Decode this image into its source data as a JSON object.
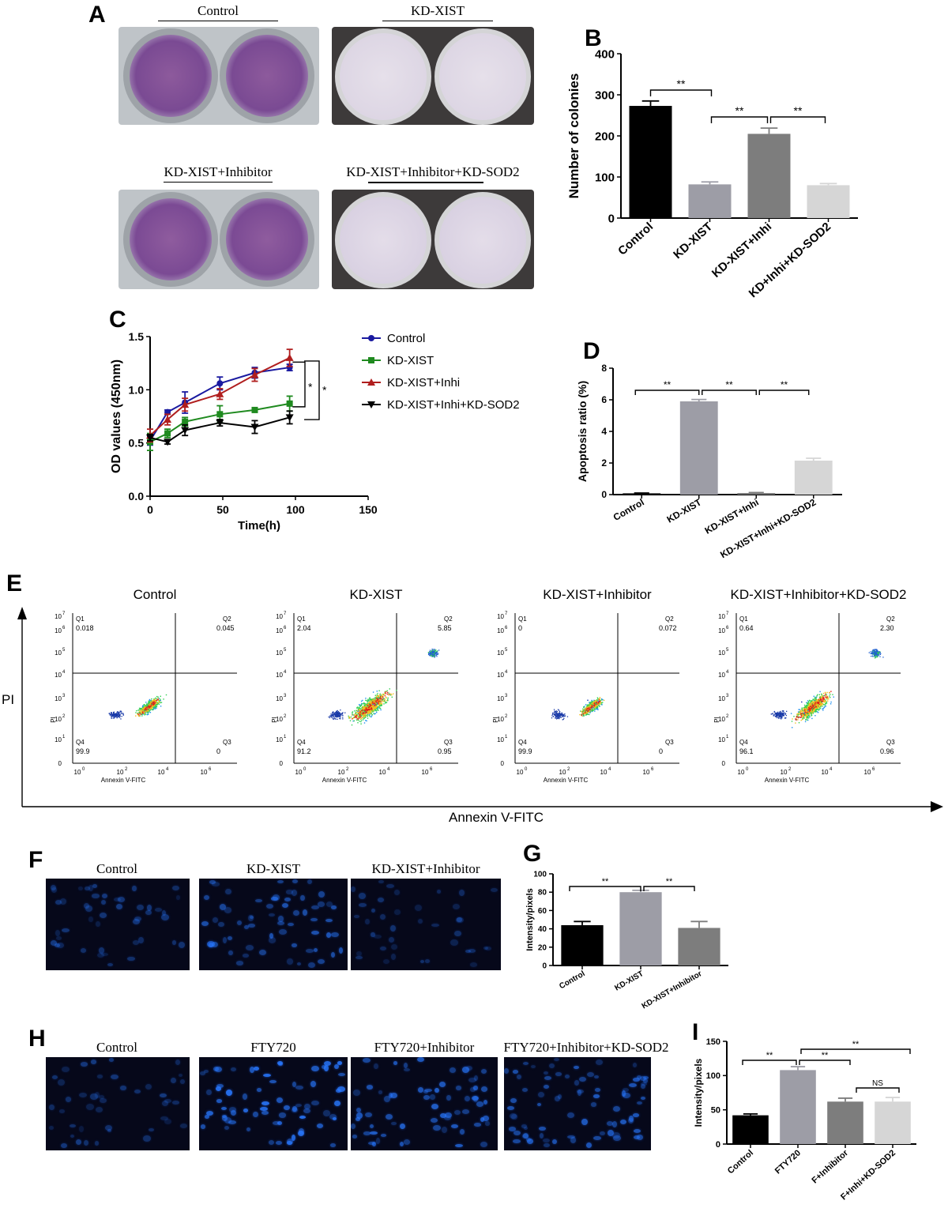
{
  "panels": {
    "A": {
      "label": "A",
      "captions": [
        "Control",
        "KD-XIST",
        "KD-XIST+Inhibitor",
        "KD-XIST+Inhibitor+KD-SOD2"
      ]
    },
    "B": {
      "label": "B"
    },
    "C": {
      "label": "C"
    },
    "D": {
      "label": "D"
    },
    "E": {
      "label": "E",
      "plots": [
        {
          "title": "Control",
          "q1": "0.018",
          "q2": "0.045",
          "q3": "0",
          "q4": "99.9"
        },
        {
          "title": "KD-XIST",
          "q1": "2.04",
          "q2": "5.85",
          "q3": "0.95",
          "q4": "91.2"
        },
        {
          "title": "KD-XIST+Inhibitor",
          "q1": "0",
          "q2": "0.072",
          "q3": "0",
          "q4": "99.9"
        },
        {
          "title": "KD-XIST+Inhibitor+KD-SOD2",
          "q1": "0.64",
          "q2": "2.30",
          "q3": "0.96",
          "q4": "96.1"
        }
      ],
      "quadrant_names": [
        "Q1",
        "Q2",
        "Q3",
        "Q4"
      ],
      "x_title": "Annexin V-FITC",
      "y_title": "PI",
      "outer_x_title": "Annexin V-FITC",
      "outer_y_title": "PI",
      "ticks": [
        "0",
        "10",
        "2",
        "10",
        "4",
        "10",
        "6",
        "10",
        "7"
      ]
    },
    "F": {
      "label": "F",
      "captions": [
        "Control",
        "KD-XIST",
        "KD-XIST+Inhibitor"
      ]
    },
    "G": {
      "label": "G"
    },
    "H": {
      "label": "H",
      "captions": [
        "Control",
        "FTY720",
        "FTY720+Inhibitor",
        "FTY720+Inhibitor+KD-SOD2"
      ]
    },
    "I": {
      "label": "I"
    }
  },
  "chart_data": [
    {
      "id": "B",
      "type": "bar",
      "categories": [
        "Control",
        "KD-XIST",
        "KD-XIST+Inhi",
        "KD+Inhi+KD-SOD2"
      ],
      "values": [
        273,
        82,
        205,
        80
      ],
      "errors": [
        12,
        6,
        14,
        4
      ],
      "ylabel": "Number of colonies",
      "ylim": [
        0,
        400
      ],
      "yticks": [
        0,
        100,
        200,
        300,
        400
      ],
      "colors": [
        "#000000",
        "#9d9da6",
        "#7d7d7d",
        "#d6d6d6"
      ],
      "sig": [
        {
          "from": 0,
          "to": 1,
          "label": "**"
        },
        {
          "from": 1,
          "to": 2,
          "label": "**"
        },
        {
          "from": 2,
          "to": 3,
          "label": "**"
        }
      ]
    },
    {
      "id": "C",
      "type": "line",
      "xlabel": "Time(h)",
      "ylabel": "OD values (450nm)",
      "xlim": [
        0,
        150
      ],
      "ylim": [
        0,
        1.5
      ],
      "xticks": [
        0,
        50,
        100,
        150
      ],
      "yticks": [
        0.0,
        0.5,
        1.0,
        1.5
      ],
      "series": [
        {
          "name": "Control",
          "color": "#1a1aa0",
          "marker": "circle",
          "x": [
            0,
            12,
            24,
            48,
            72,
            96
          ],
          "y": [
            0.52,
            0.79,
            0.88,
            1.06,
            1.16,
            1.21
          ],
          "err": [
            0.04,
            0.02,
            0.1,
            0.06,
            0.05,
            0.03
          ]
        },
        {
          "name": "KD-XIST",
          "color": "#1f8a1f",
          "marker": "square",
          "x": [
            0,
            12,
            24,
            48,
            72,
            96
          ],
          "y": [
            0.51,
            0.59,
            0.7,
            0.77,
            0.81,
            0.87
          ],
          "err": [
            0.08,
            0.04,
            0.04,
            0.08,
            0.02,
            0.07
          ]
        },
        {
          "name": "KD-XIST+Inhi",
          "color": "#b01e1e",
          "marker": "triangle",
          "x": [
            0,
            12,
            24,
            48,
            72,
            96
          ],
          "y": [
            0.57,
            0.72,
            0.86,
            0.96,
            1.14,
            1.3
          ],
          "err": [
            0.06,
            0.05,
            0.06,
            0.05,
            0.06,
            0.08
          ]
        },
        {
          "name": "KD-XIST+Inhi+KD-SOD2",
          "color": "#000000",
          "marker": "triangle-down",
          "x": [
            0,
            12,
            24,
            48,
            72,
            96
          ],
          "y": [
            0.55,
            0.51,
            0.62,
            0.69,
            0.65,
            0.74
          ],
          "err": [
            0.03,
            0.02,
            0.05,
            0.03,
            0.06,
            0.06
          ]
        }
      ],
      "sig": [
        "*",
        "*"
      ]
    },
    {
      "id": "D",
      "type": "bar",
      "categories": [
        "Control",
        "KD-XIST",
        "KD-XIST+Inhi",
        "KD-XIST+Inhi+KD-SOD2"
      ],
      "values": [
        0.08,
        5.9,
        0.1,
        2.15
      ],
      "errors": [
        0.02,
        0.12,
        0.03,
        0.15
      ],
      "ylabel": "Apoptosis ratio (%)",
      "ylim": [
        0,
        8
      ],
      "yticks": [
        0,
        2,
        4,
        6,
        8
      ],
      "colors": [
        "#000000",
        "#9d9da6",
        "#7d7d7d",
        "#d6d6d6"
      ],
      "sig": [
        {
          "from": 0,
          "to": 1,
          "label": "**"
        },
        {
          "from": 1,
          "to": 2,
          "label": "**"
        },
        {
          "from": 2,
          "to": 3,
          "label": "**"
        }
      ]
    },
    {
      "id": "G",
      "type": "bar",
      "categories": [
        "Control",
        "KD-XIST",
        "KD-XIST+Inhibitor"
      ],
      "values": [
        44,
        80,
        41
      ],
      "errors": [
        4,
        2,
        7
      ],
      "ylabel": "Intensity/pixels",
      "ylim": [
        0,
        100
      ],
      "yticks": [
        0,
        20,
        40,
        60,
        80,
        100
      ],
      "colors": [
        "#000000",
        "#9d9da6",
        "#7d7d7d"
      ],
      "sig": [
        {
          "from": 0,
          "to": 1,
          "label": "**"
        },
        {
          "from": 1,
          "to": 2,
          "label": "**"
        }
      ]
    },
    {
      "id": "I",
      "type": "bar",
      "categories": [
        "Control",
        "FTY720",
        "F+Inhibitor",
        "F+Inhi+KD-SOD2"
      ],
      "values": [
        42,
        108,
        62,
        62
      ],
      "errors": [
        2,
        5,
        5,
        6
      ],
      "ylabel": "Intensity/pixels",
      "ylim": [
        0,
        150
      ],
      "yticks": [
        0,
        50,
        100,
        150
      ],
      "colors": [
        "#000000",
        "#9d9da6",
        "#7d7d7d",
        "#d6d6d6"
      ],
      "sig": [
        {
          "from": 0,
          "to": 1,
          "label": "**"
        },
        {
          "from": 1,
          "to": 2,
          "label": "**"
        },
        {
          "from": 1,
          "to": 3,
          "label": "**"
        },
        {
          "from": 2,
          "to": 3,
          "label": "NS"
        }
      ]
    }
  ]
}
